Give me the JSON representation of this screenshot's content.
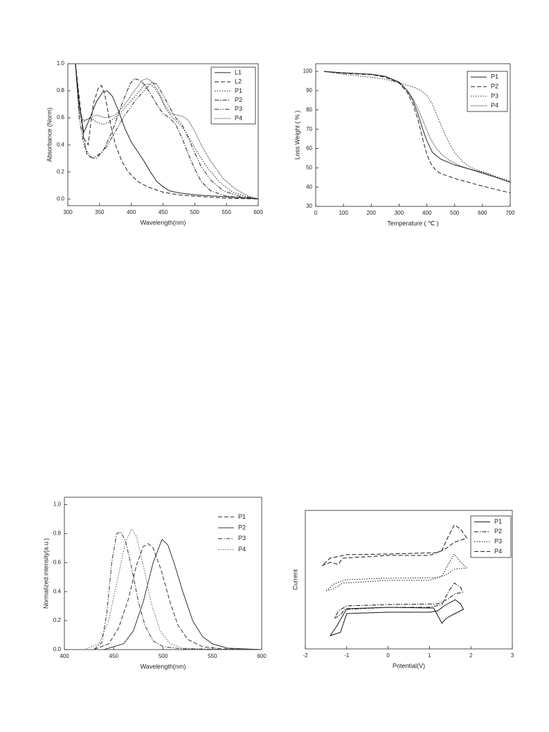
{
  "chart_data": [
    {
      "type": "line",
      "x_label": "Wavelength(nm)",
      "y_label": "Absorbance (Norm)",
      "xlim": [
        300,
        600
      ],
      "xticks": [
        300,
        350,
        400,
        450,
        500,
        550,
        600
      ],
      "ylim": [
        -0.05,
        1.0
      ],
      "yticks": [
        {
          "value": 0,
          "label": "0.0"
        },
        0.2,
        0.4,
        0.6,
        0.8,
        {
          "value": 1,
          "label": "1.0"
        }
      ],
      "legend": "upper right",
      "legend_box": true,
      "series": [
        {
          "name": "L1",
          "color": "#222",
          "linestyle": "solid",
          "x": [
            312,
            318,
            325,
            335,
            345,
            355,
            362,
            370,
            380,
            390,
            400,
            410,
            420,
            430,
            440,
            450,
            460,
            475,
            500,
            550,
            600
          ],
          "values": [
            1.0,
            0.7,
            0.49,
            0.6,
            0.72,
            0.79,
            0.8,
            0.76,
            0.65,
            0.52,
            0.42,
            0.35,
            0.28,
            0.2,
            0.13,
            0.09,
            0.06,
            0.045,
            0.03,
            0.015,
            0.0
          ]
        },
        {
          "name": "L2",
          "color": "#222",
          "linestyle": "dashed",
          "x": [
            312,
            318,
            325,
            332,
            340,
            348,
            353,
            358,
            365,
            375,
            385,
            395,
            410,
            425,
            450,
            475,
            500,
            550,
            600
          ],
          "values": [
            1.0,
            0.75,
            0.45,
            0.4,
            0.7,
            0.82,
            0.84,
            0.78,
            0.6,
            0.4,
            0.28,
            0.2,
            0.13,
            0.09,
            0.05,
            0.03,
            0.02,
            0.005,
            0.0
          ]
        },
        {
          "name": "P1",
          "color": "#222",
          "linestyle": "dotted",
          "x": [
            312,
            318,
            325,
            335,
            345,
            355,
            365,
            380,
            395,
            410,
            420,
            428,
            435,
            445,
            455,
            465,
            475,
            485,
            495,
            505,
            520,
            540,
            560,
            580,
            600
          ],
          "values": [
            1.0,
            0.65,
            0.58,
            0.6,
            0.57,
            0.55,
            0.57,
            0.62,
            0.7,
            0.78,
            0.84,
            0.85,
            0.83,
            0.76,
            0.66,
            0.6,
            0.56,
            0.5,
            0.42,
            0.34,
            0.23,
            0.12,
            0.05,
            0.02,
            0.0
          ]
        },
        {
          "name": "P2",
          "color": "#222",
          "linestyle": "dashdot",
          "x": [
            312,
            318,
            325,
            330,
            340,
            355,
            370,
            385,
            398,
            405,
            412,
            420,
            430,
            440,
            450,
            460,
            470,
            480,
            490,
            500,
            510,
            525,
            550,
            600
          ],
          "values": [
            1.0,
            0.7,
            0.45,
            0.33,
            0.3,
            0.35,
            0.5,
            0.7,
            0.85,
            0.89,
            0.88,
            0.85,
            0.78,
            0.7,
            0.63,
            0.6,
            0.55,
            0.45,
            0.33,
            0.22,
            0.13,
            0.06,
            0.02,
            0.0
          ]
        },
        {
          "name": "P3",
          "color": "#222",
          "linestyle": "dashdotdot",
          "x": [
            312,
            318,
            325,
            335,
            345,
            360,
            375,
            390,
            405,
            420,
            432,
            440,
            450,
            460,
            470,
            480,
            490,
            500,
            510,
            525,
            545,
            570,
            600
          ],
          "values": [
            1.0,
            0.6,
            0.4,
            0.31,
            0.3,
            0.38,
            0.5,
            0.62,
            0.72,
            0.8,
            0.86,
            0.85,
            0.77,
            0.68,
            0.6,
            0.55,
            0.45,
            0.34,
            0.24,
            0.14,
            0.06,
            0.02,
            0.0
          ]
        },
        {
          "name": "P4",
          "color": "#222",
          "linestyle": "densedot",
          "x": [
            312,
            318,
            325,
            335,
            345,
            360,
            375,
            390,
            405,
            418,
            425,
            432,
            442,
            452,
            462,
            472,
            482,
            490,
            500,
            510,
            525,
            545,
            565,
            585,
            600
          ],
          "values": [
            1.0,
            0.62,
            0.57,
            0.6,
            0.62,
            0.6,
            0.62,
            0.7,
            0.8,
            0.88,
            0.89,
            0.87,
            0.8,
            0.7,
            0.63,
            0.62,
            0.61,
            0.58,
            0.5,
            0.4,
            0.28,
            0.15,
            0.07,
            0.02,
            0.0
          ]
        }
      ]
    },
    {
      "type": "line",
      "x_label": "Temperature ( ℃ )",
      "y_label": "Loss Weight ( % )",
      "xlim": [
        0,
        700
      ],
      "xticks": [
        0,
        100,
        200,
        300,
        400,
        500,
        600,
        700
      ],
      "ylim": [
        30,
        104
      ],
      "yticks": [
        30,
        40,
        50,
        60,
        70,
        80,
        90,
        100
      ],
      "legend": "upper right",
      "legend_box": true,
      "series": [
        {
          "name": "P1",
          "color": "#222",
          "linestyle": "solid",
          "x": [
            30,
            100,
            200,
            250,
            300,
            330,
            350,
            370,
            385,
            400,
            420,
            450,
            500,
            550,
            600,
            650,
            700
          ],
          "values": [
            100,
            99.3,
            98.5,
            97.5,
            94.5,
            90,
            85,
            77,
            70,
            64,
            58,
            54.5,
            51.5,
            49.5,
            47.5,
            45,
            42.5
          ]
        },
        {
          "name": "P2",
          "color": "#222",
          "linestyle": "dashed",
          "x": [
            30,
            100,
            200,
            250,
            300,
            330,
            350,
            370,
            385,
            400,
            415,
            430,
            450,
            500,
            600,
            700
          ],
          "values": [
            100,
            99,
            98.3,
            97,
            94,
            89,
            83,
            74,
            65,
            57,
            52,
            49,
            47,
            44.5,
            40.5,
            37
          ]
        },
        {
          "name": "P3",
          "color": "#222",
          "linestyle": "dotted",
          "x": [
            30,
            100,
            200,
            250,
            300,
            350,
            380,
            400,
            420,
            440,
            460,
            480,
            500,
            530,
            560,
            600,
            650,
            700
          ],
          "values": [
            100,
            98.5,
            97,
            96,
            94,
            92,
            90,
            87.5,
            83,
            76,
            69,
            63,
            58,
            53,
            50,
            48,
            45.5,
            43
          ]
        },
        {
          "name": "P4",
          "color": "#222",
          "linestyle": "densedot",
          "x": [
            30,
            100,
            200,
            250,
            300,
            330,
            350,
            370,
            390,
            410,
            430,
            450,
            480,
            520,
            600,
            650,
            700
          ],
          "values": [
            100,
            99.2,
            98.5,
            97.3,
            94.3,
            90,
            86,
            80,
            73,
            66,
            61,
            57.5,
            54,
            51,
            47,
            45,
            42.5
          ]
        }
      ]
    },
    {
      "type": "line",
      "x_label": "Wavelength(nm)",
      "y_label": "Normalized intensity(a.u.)",
      "xlim": [
        400,
        600
      ],
      "xticks": [
        400,
        450,
        500,
        550,
        600
      ],
      "ylim": [
        0,
        1.05
      ],
      "yticks": [
        {
          "value": 0,
          "label": "0.0"
        },
        0.2,
        0.4,
        0.6,
        0.8,
        {
          "value": 1,
          "label": "1.0"
        }
      ],
      "legend": "upper right",
      "legend_box": false,
      "series": [
        {
          "name": "P1",
          "color": "#333",
          "linestyle": "dashed",
          "x": [
            430,
            445,
            455,
            465,
            473,
            480,
            485,
            490,
            498,
            507,
            515,
            525,
            540,
            560,
            600
          ],
          "values": [
            0,
            0.04,
            0.15,
            0.35,
            0.58,
            0.71,
            0.73,
            0.7,
            0.55,
            0.33,
            0.17,
            0.07,
            0.02,
            0.005,
            0.0
          ]
        },
        {
          "name": "P2",
          "color": "#333",
          "linestyle": "solid",
          "x": [
            440,
            460,
            470,
            480,
            490,
            499,
            505,
            512,
            520,
            530,
            540,
            550,
            565,
            600
          ],
          "values": [
            0,
            0.04,
            0.13,
            0.33,
            0.6,
            0.76,
            0.72,
            0.58,
            0.4,
            0.2,
            0.09,
            0.04,
            0.01,
            0.0
          ]
        },
        {
          "name": "P3",
          "color": "#333",
          "linestyle": "dashdot",
          "x": [
            430,
            438,
            443,
            448,
            453,
            457,
            462,
            468,
            475,
            482,
            490,
            500,
            520,
            600
          ],
          "values": [
            0,
            0.05,
            0.25,
            0.6,
            0.8,
            0.81,
            0.75,
            0.57,
            0.33,
            0.16,
            0.06,
            0.02,
            0.005,
            0.0
          ]
        },
        {
          "name": "P4",
          "color": "#555",
          "linestyle": "dotted",
          "x": [
            420,
            435,
            445,
            455,
            462,
            468,
            473,
            480,
            488,
            497,
            507,
            520,
            560,
            600
          ],
          "values": [
            0,
            0.04,
            0.2,
            0.52,
            0.74,
            0.83,
            0.78,
            0.58,
            0.32,
            0.13,
            0.04,
            0.01,
            0.0,
            0.0
          ]
        }
      ]
    },
    {
      "type": "line",
      "x_label": "Potential(V)",
      "y_label": "Current",
      "xlim": [
        -2,
        3
      ],
      "xticks": [
        -2,
        -1,
        0,
        1,
        2,
        3
      ],
      "ylim": [
        0,
        10
      ],
      "legend": "upper right",
      "legend_box": true,
      "series": [
        {
          "name": "P1",
          "color": "#111",
          "linestyle": "solid",
          "x": [
            -1.4,
            -1.15,
            -1.0,
            0,
            1.0,
            1.2,
            1.35,
            1.5,
            1.62,
            1.75,
            1.82,
            1.55,
            1.4,
            1.3,
            1.1,
            0,
            -1.0,
            -1.25,
            -1.4
          ],
          "values": [
            0.95,
            1.2,
            2.55,
            2.65,
            2.65,
            2.75,
            3.1,
            3.35,
            3.55,
            3.25,
            2.85,
            2.45,
            2.2,
            1.85,
            2.95,
            3.0,
            2.9,
            1.6,
            0.95
          ]
        },
        {
          "name": "P2",
          "color": "#111",
          "linestyle": "dashdot",
          "x": [
            -1.3,
            -1.15,
            -1.05,
            0,
            1.0,
            1.3,
            1.45,
            1.6,
            1.75,
            1.8,
            1.6,
            1.45,
            1.2,
            0,
            -1.0,
            -1.2,
            -1.3
          ],
          "values": [
            2.2,
            2.45,
            2.85,
            3.0,
            3.0,
            3.2,
            4.1,
            4.75,
            4.45,
            4.1,
            3.95,
            3.6,
            3.25,
            3.2,
            3.1,
            2.75,
            2.2
          ]
        },
        {
          "name": "P3",
          "color": "#111",
          "linestyle": "dotted",
          "x": [
            -1.5,
            -1.3,
            -1.1,
            0,
            1.0,
            1.3,
            1.45,
            1.6,
            1.7,
            1.9,
            1.6,
            1.4,
            1.2,
            0,
            -1.0,
            -1.3,
            -1.5
          ],
          "values": [
            4.2,
            4.35,
            4.75,
            4.95,
            4.95,
            5.25,
            6.1,
            6.85,
            6.45,
            5.85,
            5.75,
            5.35,
            5.15,
            5.1,
            5.0,
            4.7,
            4.2
          ]
        },
        {
          "name": "P4",
          "color": "#111",
          "linestyle": "dashed",
          "x": [
            -1.6,
            -1.4,
            -1.2,
            -1.1,
            0,
            1.0,
            1.3,
            1.45,
            1.6,
            1.75,
            1.9,
            1.6,
            1.4,
            1.2,
            0,
            -1.0,
            -1.4,
            -1.6
          ],
          "values": [
            6.0,
            6.25,
            6.1,
            6.55,
            6.75,
            6.75,
            7.1,
            8.1,
            8.95,
            8.65,
            8.0,
            7.7,
            7.25,
            6.95,
            6.85,
            6.8,
            6.55,
            6.0
          ]
        }
      ]
    }
  ]
}
